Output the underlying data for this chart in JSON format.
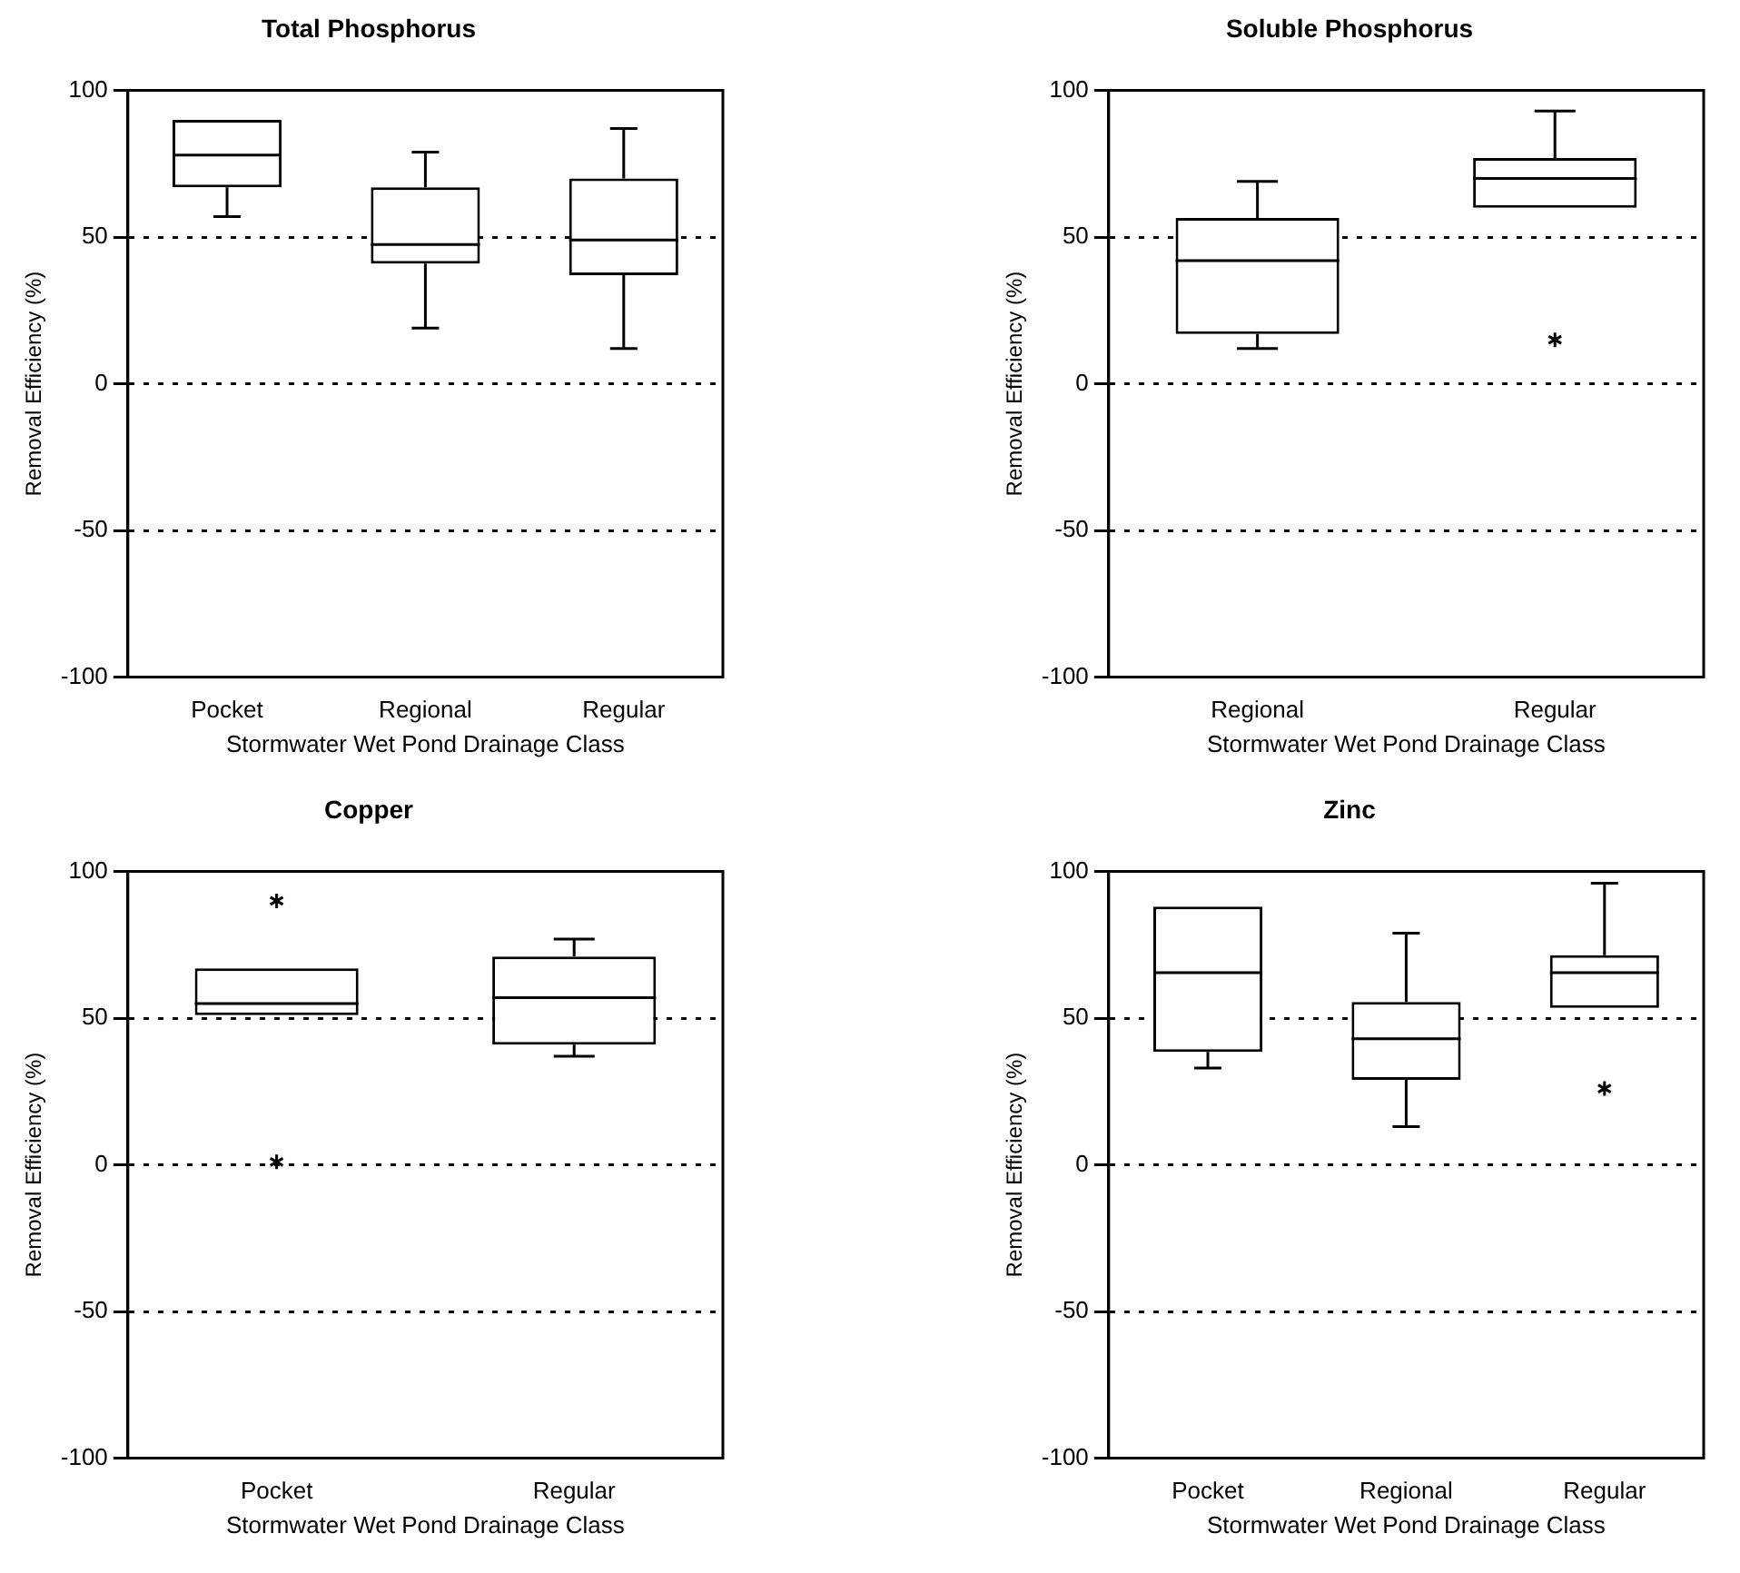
{
  "chart_data": [
    {
      "type": "box",
      "title": "Total Phosphorus",
      "xlabel": "Stormwater Wet Pond Drainage Class",
      "ylabel": "Removal Efficiency (%)",
      "categories": [
        "Pocket",
        "Regional",
        "Regular"
      ],
      "boxes": [
        {
          "low": 57,
          "q1": 67,
          "median": 78,
          "q3": 90,
          "high": 90
        },
        {
          "low": 19,
          "q1": 41,
          "median": 47.5,
          "q3": 67,
          "high": 79
        },
        {
          "low": 12,
          "q1": 37,
          "median": 49,
          "q3": 70,
          "high": 87
        }
      ],
      "ylim": [
        -100,
        100
      ],
      "yticks": [
        -100,
        -50,
        0,
        50,
        100
      ],
      "grid": "y"
    },
    {
      "type": "box",
      "title": "Soluble Phosphorus",
      "xlabel": "Stormwater Wet Pond Drainage Class",
      "ylabel": "Removal Efficiency (%)",
      "categories": [
        "Regional",
        "Regular"
      ],
      "boxes": [
        {
          "low": 12,
          "q1": 17,
          "median": 42,
          "q3": 56.5,
          "high": 69
        },
        {
          "low": 60,
          "q1": 60,
          "median": 70,
          "q3": 77,
          "high": 93,
          "outliers": [
            15
          ]
        }
      ],
      "ylim": [
        -100,
        100
      ],
      "yticks": [
        -100,
        -50,
        0,
        50,
        100
      ],
      "grid": "y"
    },
    {
      "type": "box",
      "title": "Copper",
      "xlabel": "Stormwater Wet Pond Drainage Class",
      "ylabel": "Removal Efficiency (%)",
      "categories": [
        "Pocket",
        "Regular"
      ],
      "boxes": [
        {
          "low": 51,
          "q1": 51,
          "median": 55,
          "q3": 67,
          "high": 67,
          "outliers": [
            90,
            1
          ]
        },
        {
          "low": 37,
          "q1": 41,
          "median": 57,
          "q3": 71,
          "high": 77
        }
      ],
      "ylim": [
        -100,
        100
      ],
      "yticks": [
        -100,
        -50,
        0,
        50,
        100
      ],
      "grid": "y"
    },
    {
      "type": "box",
      "title": "Zinc",
      "xlabel": "Stormwater Wet Pond Drainage Class",
      "ylabel": "Removal Efficiency (%)",
      "categories": [
        "Pocket",
        "Regional",
        "Regular"
      ],
      "boxes": [
        {
          "low": 33,
          "q1": 38.5,
          "median": 65.5,
          "q3": 88,
          "high": 88
        },
        {
          "low": 13,
          "q1": 29,
          "median": 43,
          "q3": 55.5,
          "high": 79
        },
        {
          "low": 53.5,
          "q1": 53.5,
          "median": 65.5,
          "q3": 71.5,
          "high": 96,
          "outliers": [
            26
          ]
        }
      ],
      "ylim": [
        -100,
        100
      ],
      "yticks": [
        -100,
        -50,
        0,
        50,
        100
      ],
      "grid": "y"
    }
  ]
}
